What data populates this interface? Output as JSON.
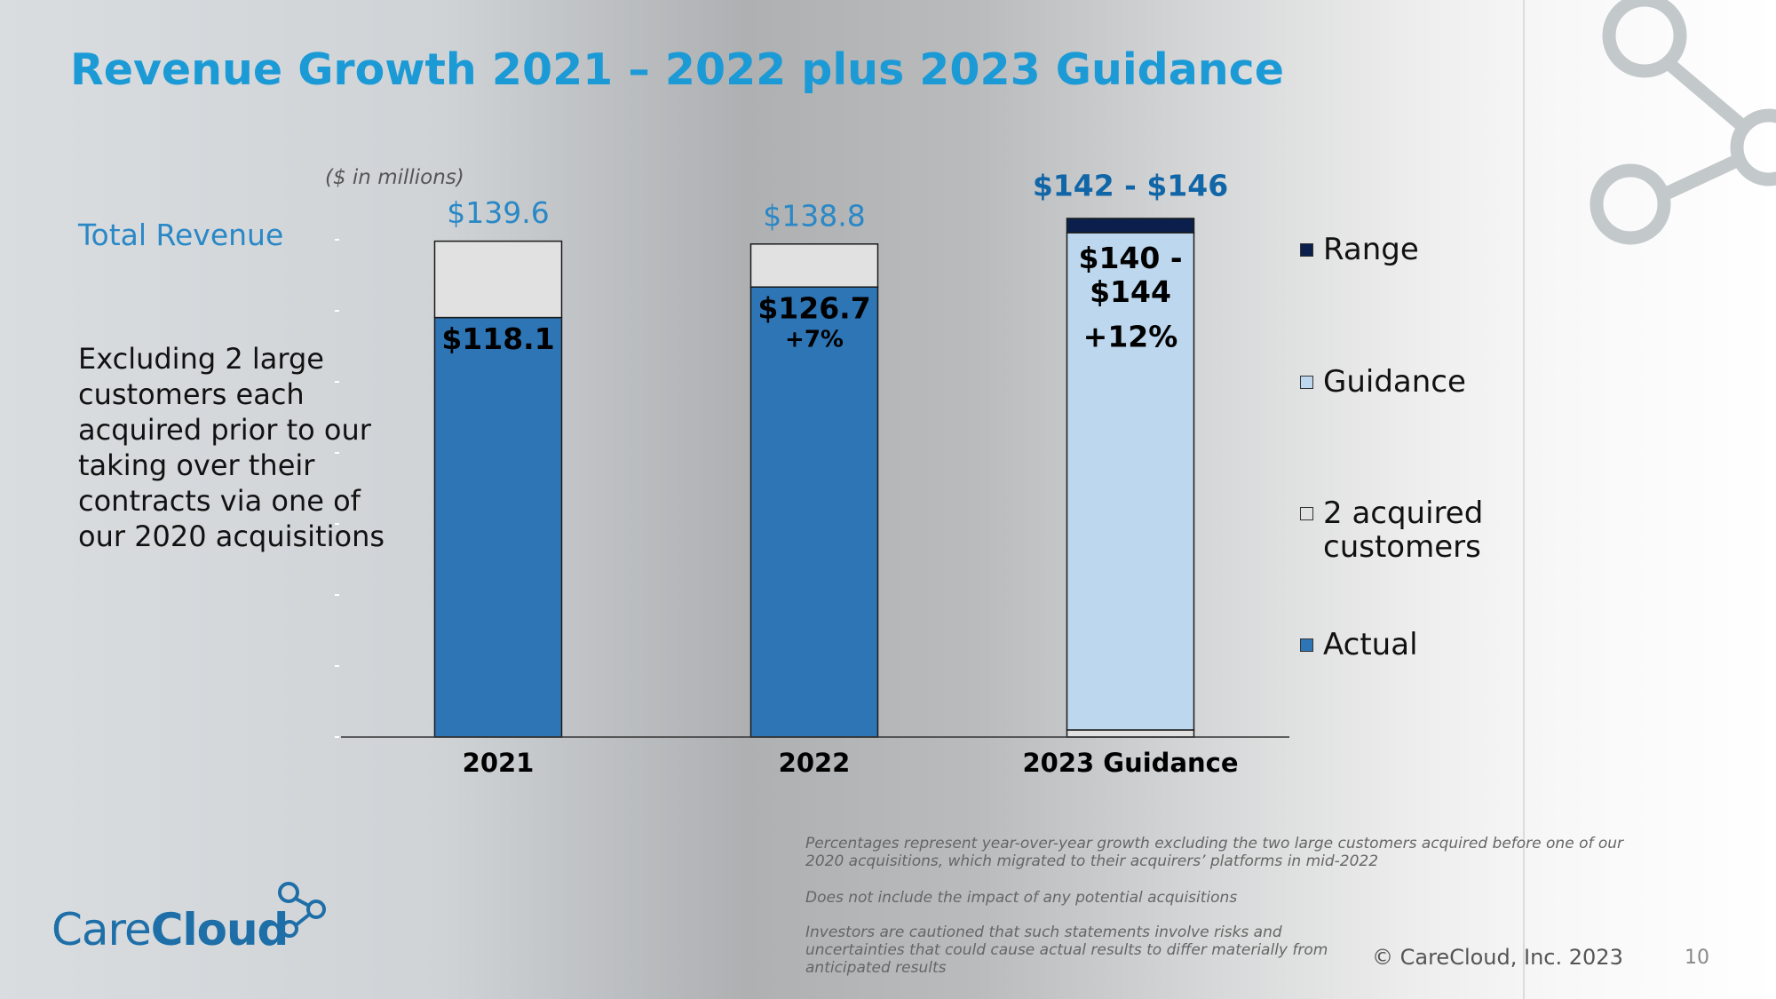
{
  "title": "Revenue Growth 2021 – 2022 plus 2023 Guidance",
  "side_heading": "Total Revenue",
  "side_note": "Excluding 2 large customers each acquired prior to our taking over their contracts via one of our 2020 acquisitions",
  "footnotes": [
    "Percentages represent year-over-year growth excluding the two large customers acquired before one of our 2020 acquisitions, which migrated to their acquirers’ platforms in mid-2022",
    "Does not include the impact of any potential acquisitions",
    "Investors are cautioned that such statements involve risks and uncertainties that could cause actual results to differ materially from anticipated results"
  ],
  "copyright": "© CareCloud, Inc. 2023",
  "page_number": "10",
  "logo": [
    "Care",
    "Cloud"
  ],
  "chart_data": {
    "type": "bar",
    "stacked": true,
    "subtitle": "($ in millions)",
    "categories": [
      "2021",
      "2022",
      "2023 Guidance"
    ],
    "series": [
      {
        "name": "Actual",
        "color": "#2e75b6",
        "values": [
          118.1,
          126.7,
          null
        ],
        "value_labels": [
          "$118.1",
          "$126.7",
          null
        ]
      },
      {
        "name": "2 acquired customers",
        "color": "#e1e1e1",
        "values": [
          21.5,
          12.1,
          2
        ]
      },
      {
        "name": "Guidance",
        "color": "#bdd7ee",
        "values": [
          null,
          null,
          140
        ]
      },
      {
        "name": "Range",
        "color": "#0b1f4d",
        "values": [
          null,
          null,
          4
        ]
      }
    ],
    "total_labels": [
      "$139.6",
      "$138.8",
      "$142 - $146"
    ],
    "growth_labels": [
      null,
      "+7%",
      "+12%"
    ],
    "guidance_label": "$140 - $144",
    "ylim": [
      0,
      150
    ],
    "yticks": [
      0,
      20,
      40,
      60,
      80,
      100,
      120,
      140
    ],
    "legend": "right"
  }
}
